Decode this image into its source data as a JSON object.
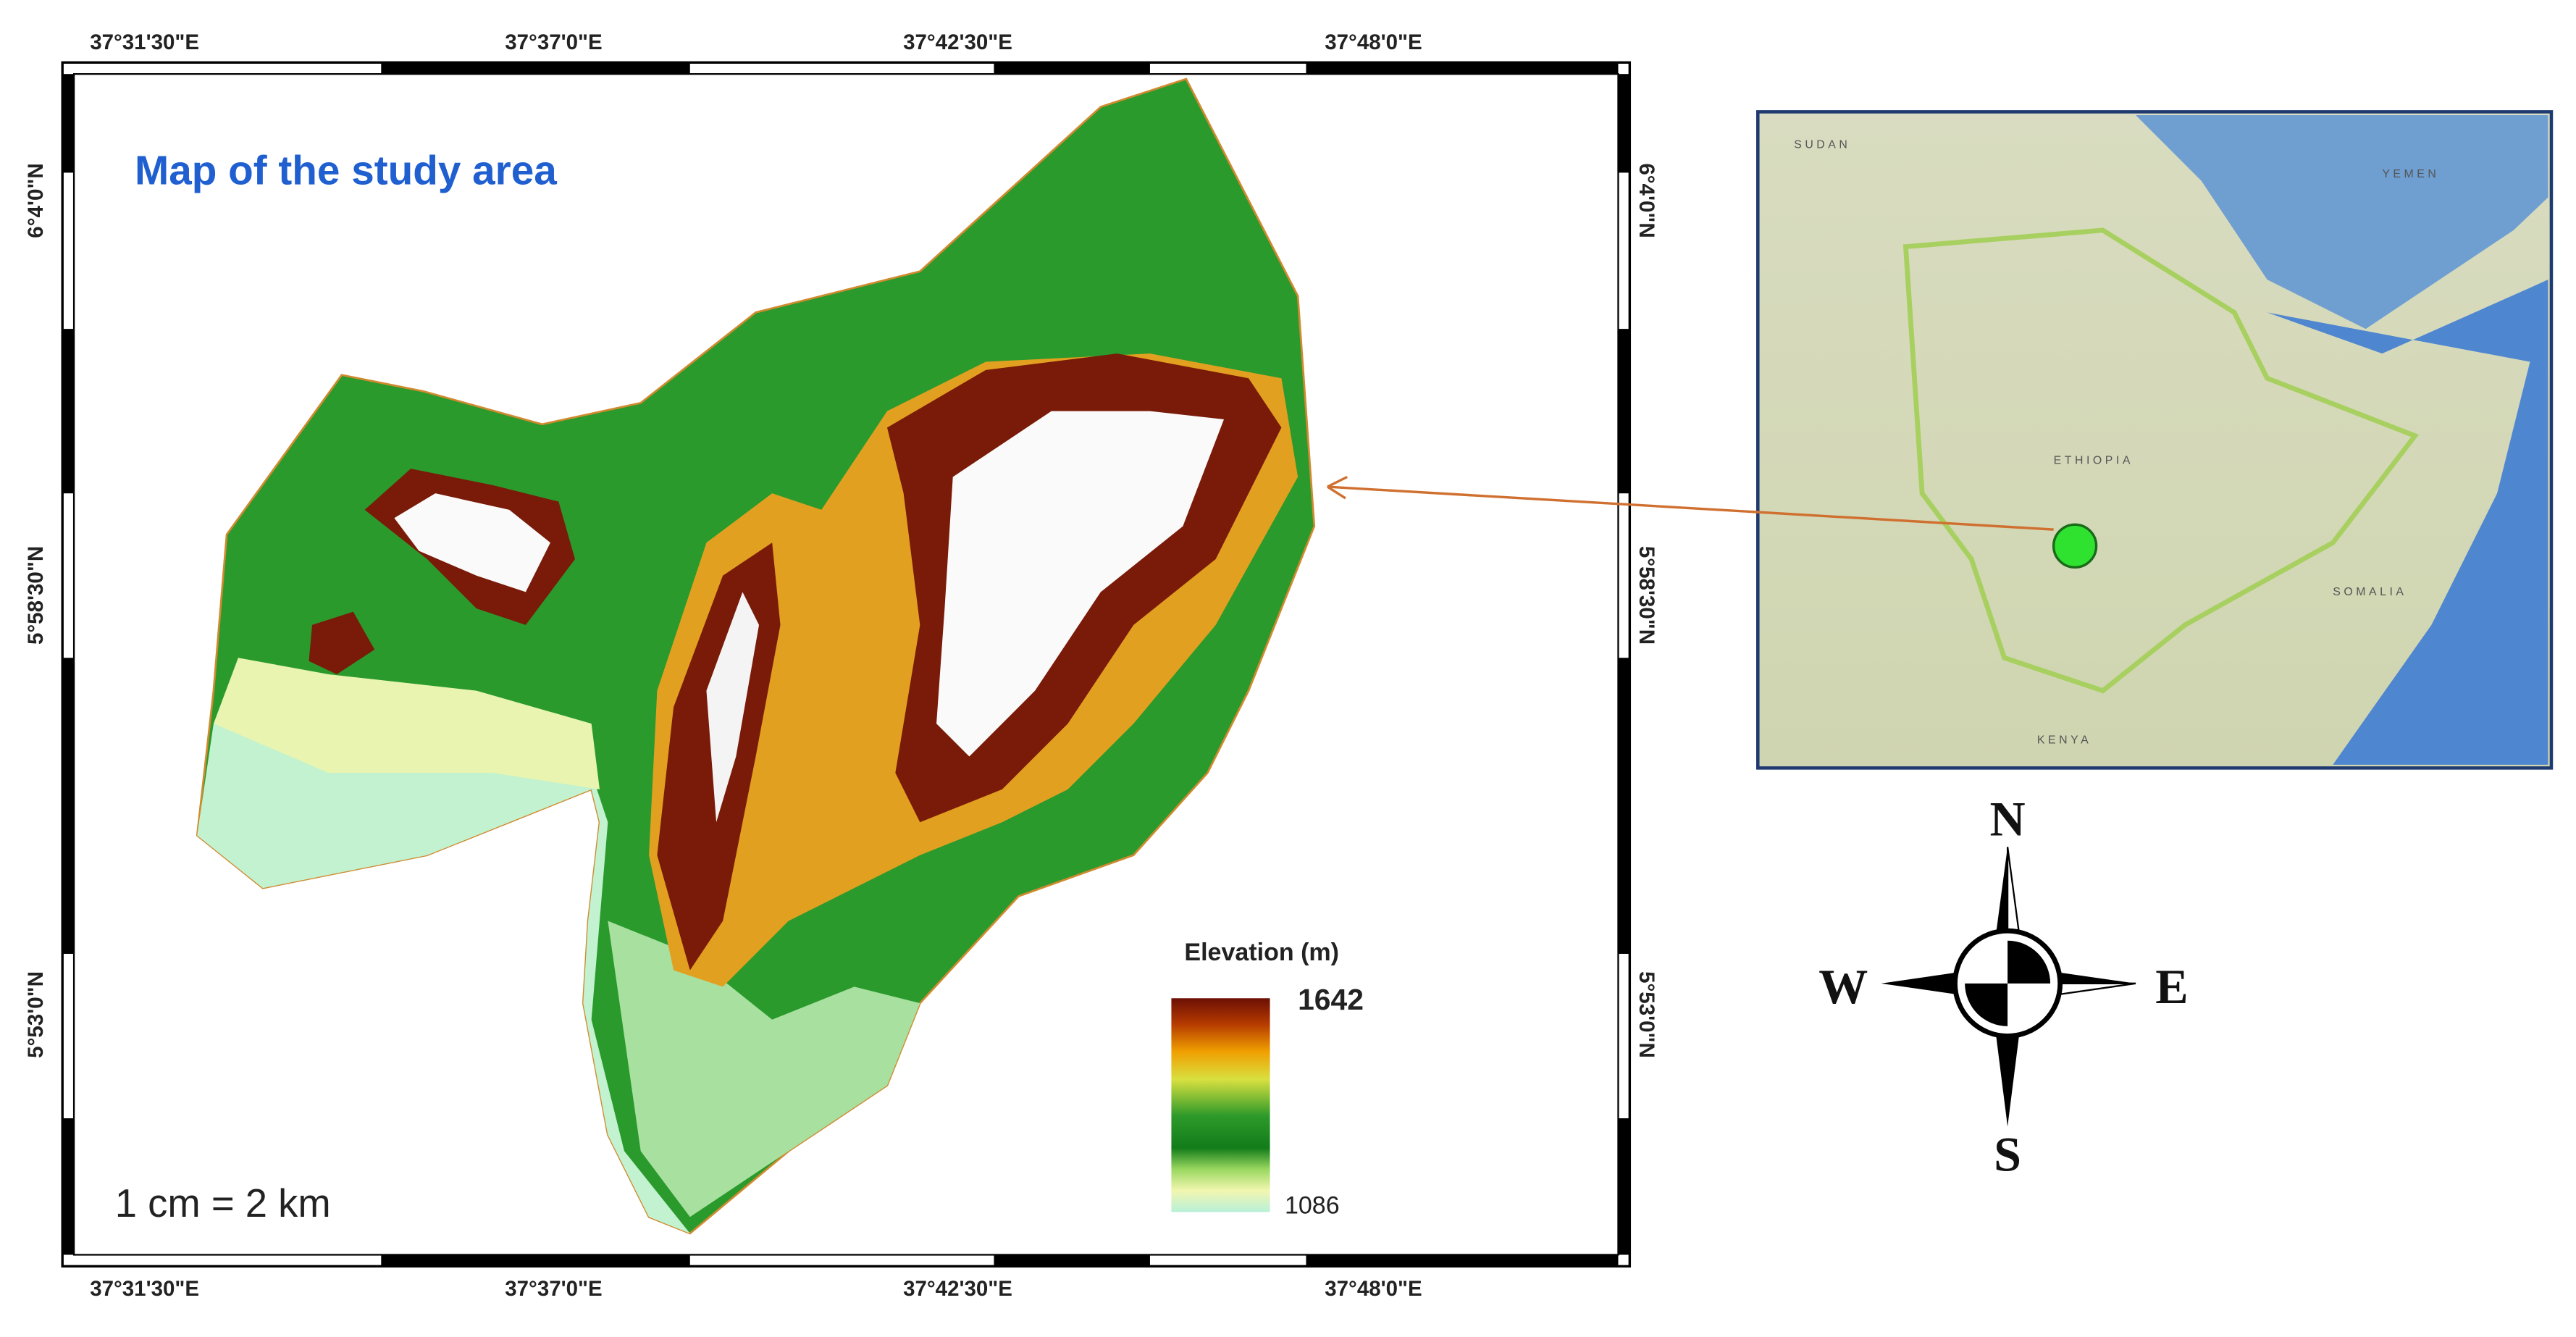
{
  "map": {
    "title": "Map of the study area",
    "top_labels": [
      "37°31'30\"E",
      "37°37'0\"E",
      "37°42'30\"E",
      "37°48'0\"E"
    ],
    "bottom_labels": [
      "37°31'30\"E",
      "37°37'0\"E",
      "37°42'30\"E",
      "37°48'0\"E"
    ],
    "left_labels": [
      "6°4'0\"N",
      "5°58'30\"N",
      "5°53'0\"N"
    ],
    "right_labels": [
      "6°4'0\"N",
      "5°58'30\"N",
      "5°53'0\"N"
    ],
    "legend": {
      "title": "Elevation (m)",
      "high": "1642",
      "low": "1086"
    },
    "scale": "1 cm = 2 km",
    "inset_labels": [
      "SUDAN",
      "YEMEN",
      "ETHIOPIA",
      "SOMALIA",
      "KENYA"
    ],
    "compass": {
      "north": "N",
      "south": "S",
      "east": "E",
      "west": "W"
    }
  }
}
